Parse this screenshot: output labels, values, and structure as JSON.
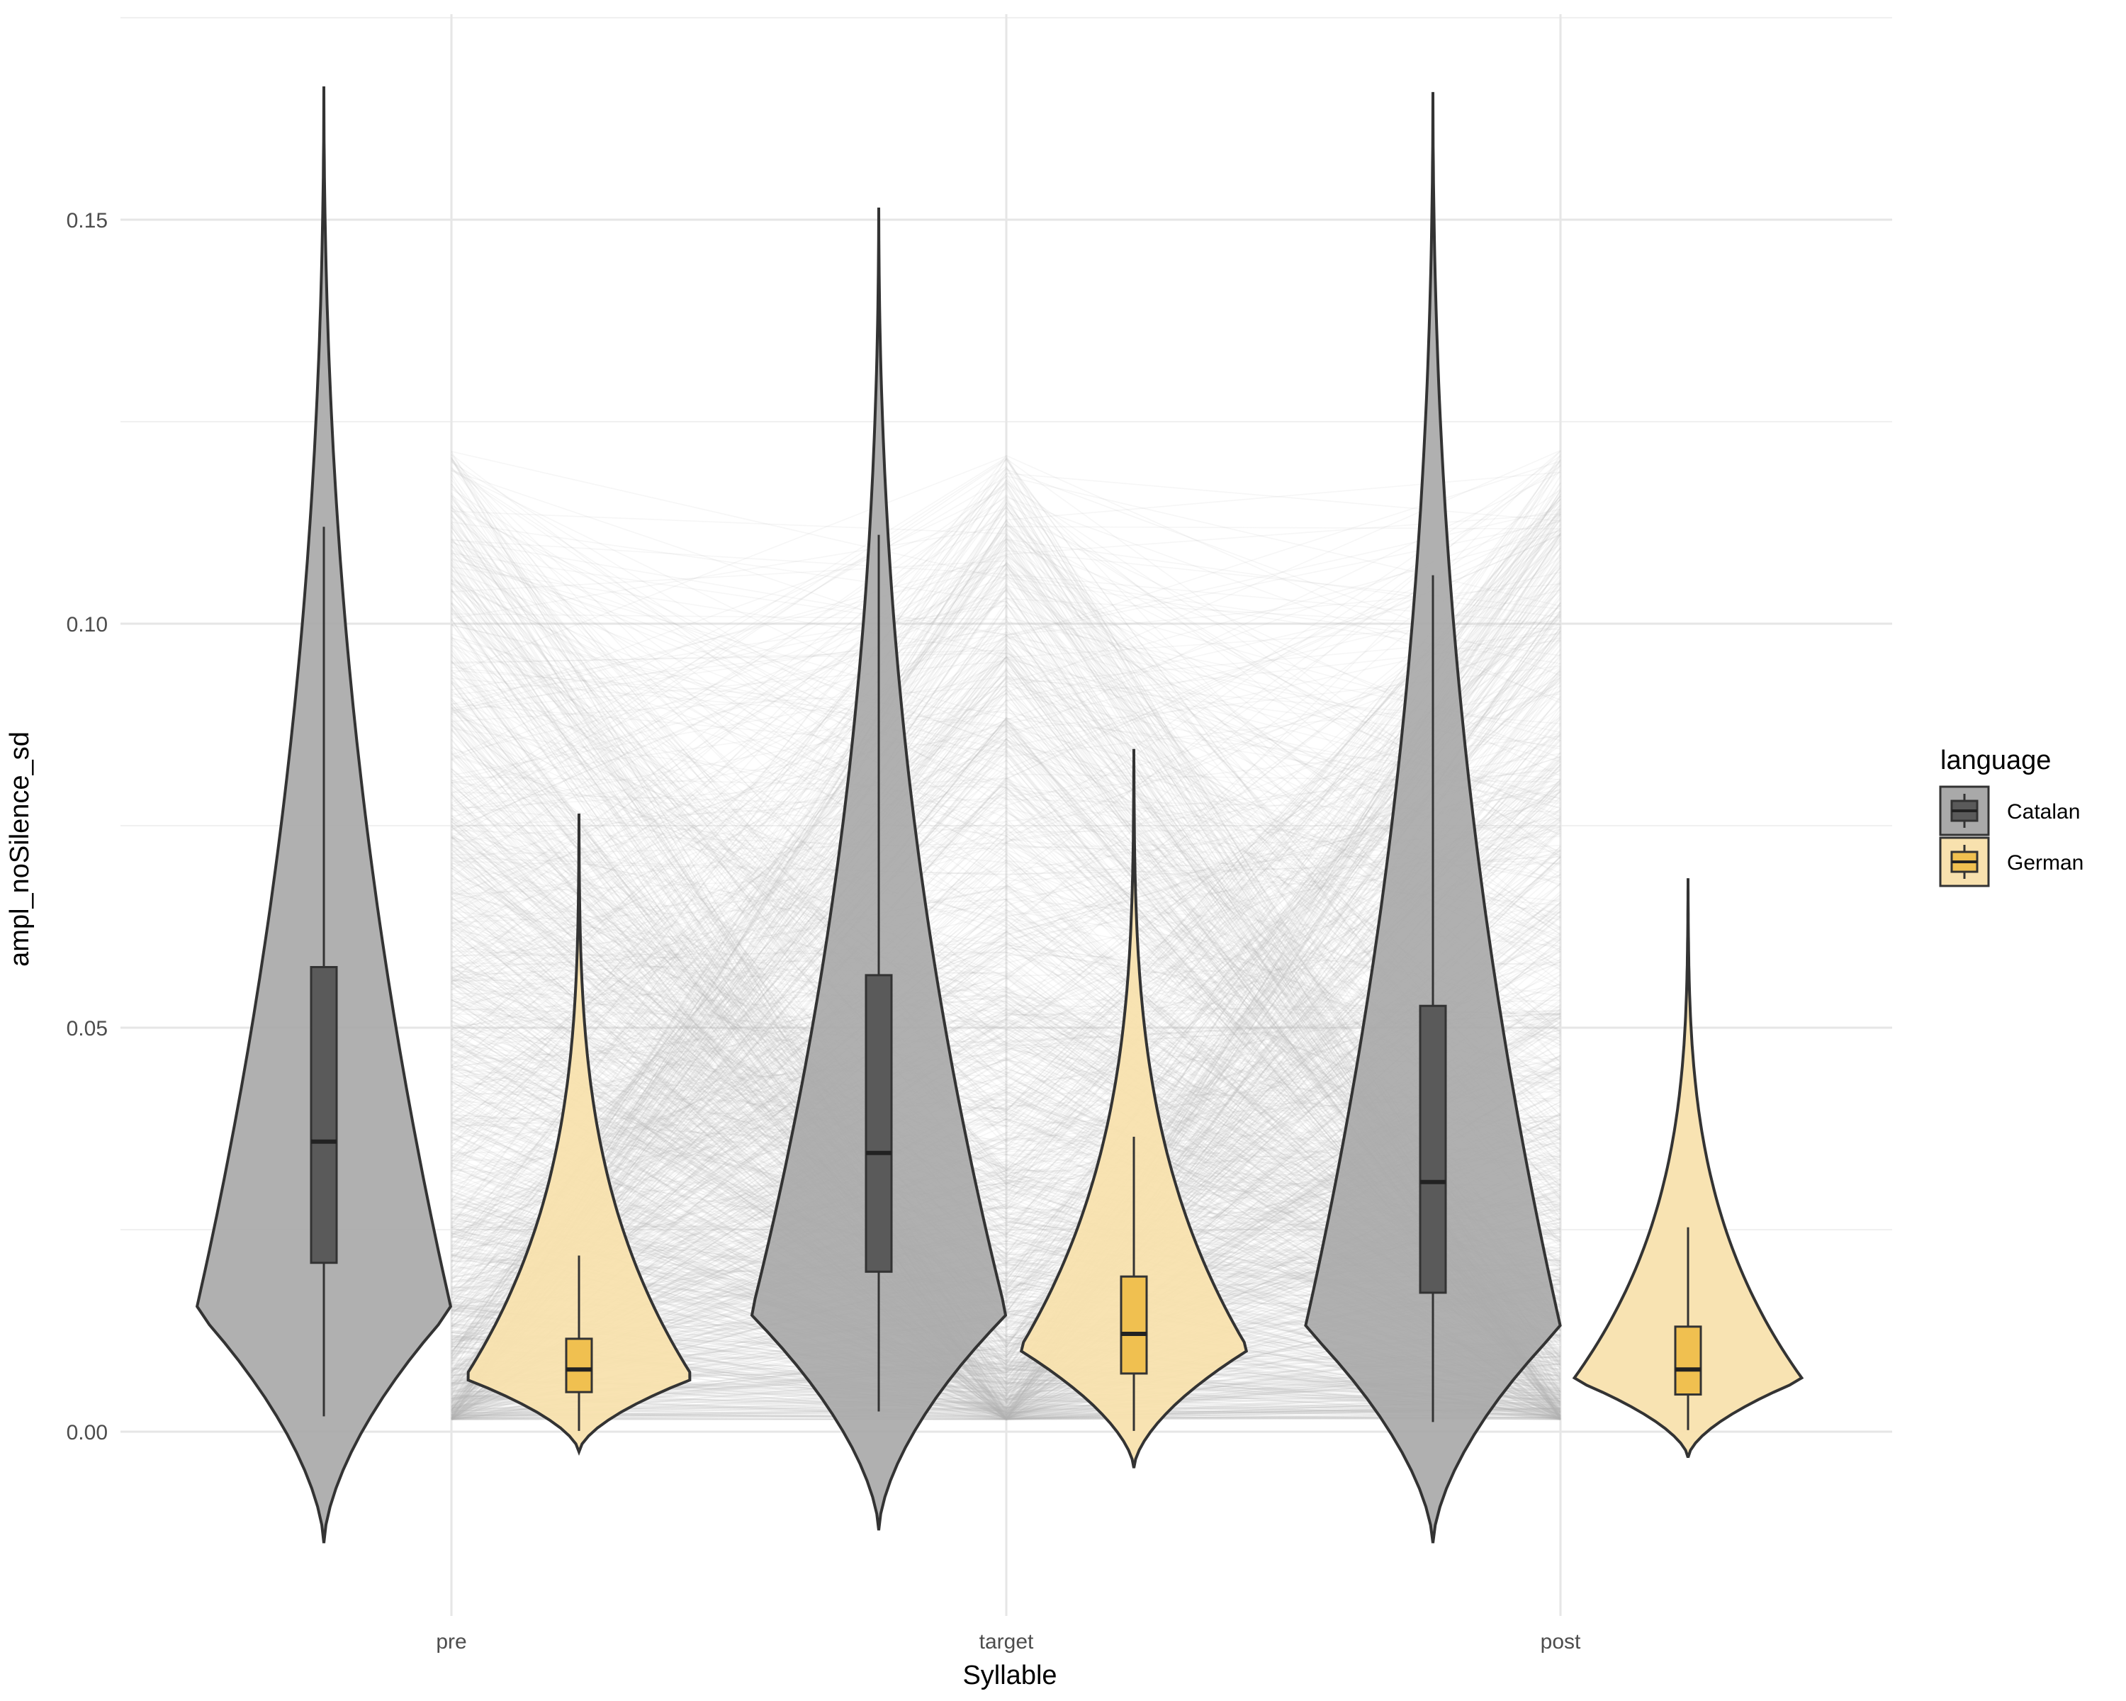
{
  "chart_data": {
    "type": "violin",
    "title": "",
    "xlabel": "Syllable",
    "ylabel": "ampl_noSilence_sd",
    "categories": [
      "pre",
      "target",
      "post"
    ],
    "ylim": [
      -0.022,
      0.175
    ],
    "yticks": [
      0.0,
      0.05,
      0.1,
      0.15
    ],
    "ytick_labels": [
      "0.00",
      "0.05",
      "0.10",
      "0.15"
    ],
    "grid": true,
    "legend": {
      "title": "language",
      "position": "right"
    },
    "series": [
      {
        "name": "Catalan",
        "color": "#a9a9a9",
        "box_color": "#5a5a5a",
        "stats": [
          {
            "category": "pre",
            "violin_min": -0.0138,
            "violin_max": 0.1665,
            "whisker_low": 0.0019,
            "q1": 0.0209,
            "median": 0.0359,
            "q3": 0.0575,
            "whisker_high": 0.112
          },
          {
            "category": "target",
            "violin_min": -0.0122,
            "violin_max": 0.1515,
            "whisker_low": 0.0025,
            "q1": 0.0198,
            "median": 0.0345,
            "q3": 0.0565,
            "whisker_high": 0.111
          },
          {
            "category": "post",
            "violin_min": -0.0138,
            "violin_max": 0.1658,
            "whisker_low": 0.0012,
            "q1": 0.0172,
            "median": 0.0309,
            "q3": 0.0527,
            "whisker_high": 0.106
          }
        ]
      },
      {
        "name": "German",
        "color": "#f8e1ae",
        "box_color": "#f0c050",
        "stats": [
          {
            "category": "pre",
            "violin_min": -0.0025,
            "violin_max": 0.0765,
            "whisker_low": 0.0001,
            "q1": 0.0049,
            "median": 0.0077,
            "q3": 0.0115,
            "whisker_high": 0.0218
          },
          {
            "category": "target",
            "violin_min": -0.0045,
            "violin_max": 0.0845,
            "whisker_low": 0.0001,
            "q1": 0.0072,
            "median": 0.0121,
            "q3": 0.0192,
            "whisker_high": 0.0365
          },
          {
            "category": "post",
            "violin_min": -0.0032,
            "violin_max": 0.0685,
            "whisker_low": 0.0002,
            "q1": 0.0046,
            "median": 0.0077,
            "q3": 0.013,
            "whisker_high": 0.0253
          }
        ]
      }
    ],
    "background_lines": {
      "description_hidden": true,
      "color": "#b5b5b5",
      "y_range": [
        0.0015,
        0.15
      ],
      "connects": [
        "pre",
        "target",
        "post"
      ]
    }
  }
}
